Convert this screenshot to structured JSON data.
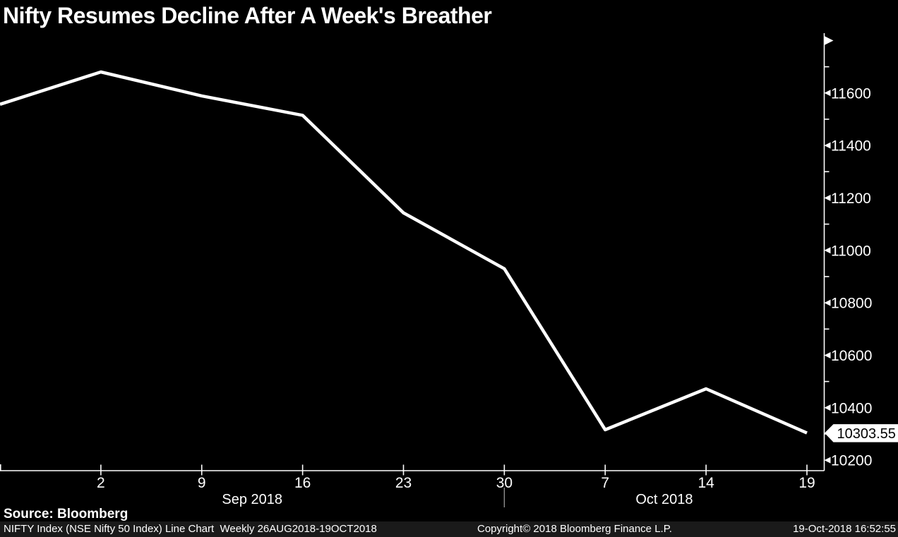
{
  "title": "Nifty Resumes Decline After A Week's Breather",
  "source_text": "Source: Bloomberg",
  "footer_bar": {
    "left": "NIFTY Index (NSE Nifty 50 Index) Line Chart  Weekly 26AUG2018-19OCT2018",
    "center": "Copyright© 2018 Bloomberg Finance L.P.",
    "right": "19-Oct-2018 16:52:55"
  },
  "colors": {
    "background": "#000000",
    "line": "#ffffff",
    "axis": "#ffffff",
    "text": "#ffffff",
    "month_separator": "#8f8f8f",
    "badge_bg": "#ffffff",
    "badge_text": "#000000",
    "footer_bar_bg": "#1a1a1a"
  },
  "chart_data": {
    "type": "line",
    "title": "Nifty Resumes Decline After A Week's Breather",
    "series": [
      {
        "name": "NIFTY Index (NSE Nifty 50 Index) weekly close",
        "values": [
          11557,
          11680,
          11589,
          11515,
          11143,
          10930,
          10316,
          10472,
          10303.55
        ]
      }
    ],
    "x_labels": [
      "",
      "2",
      "9",
      "16",
      "23",
      "30",
      "7",
      "14",
      "19"
    ],
    "month_groups": [
      {
        "label": "Sep 2018",
        "start_index": 0,
        "end_index": 5
      },
      {
        "label": "Oct 2018",
        "start_index": 5,
        "end_index": null
      }
    ],
    "y_major_ticks": [
      10200,
      10400,
      10600,
      10800,
      11000,
      11200,
      11400,
      11600
    ],
    "y_minor_ticks": [
      10300,
      10500,
      10700,
      10900,
      11100,
      11300,
      11500,
      11700
    ],
    "ylim": [
      10160,
      11820
    ],
    "last_value": 10303.55,
    "last_value_label": "10303.55",
    "grid": false,
    "legend": "none",
    "xlabel": "",
    "ylabel": ""
  }
}
